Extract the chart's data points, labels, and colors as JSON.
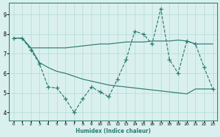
{
  "x": [
    0,
    1,
    2,
    3,
    4,
    5,
    6,
    7,
    8,
    9,
    10,
    11,
    12,
    13,
    14,
    15,
    16,
    17,
    18,
    19,
    20,
    21,
    22,
    23
  ],
  "line_flat": [
    7.8,
    7.8,
    7.3,
    7.3,
    7.3,
    7.3,
    7.3,
    7.35,
    7.4,
    7.45,
    7.5,
    7.5,
    7.55,
    7.6,
    7.6,
    7.6,
    7.65,
    7.65,
    7.65,
    7.7,
    7.65,
    7.5,
    7.5,
    7.5
  ],
  "line_diag": [
    7.8,
    7.8,
    7.3,
    6.55,
    6.3,
    6.1,
    6.0,
    5.85,
    5.7,
    5.6,
    5.5,
    5.4,
    5.35,
    5.3,
    5.25,
    5.2,
    5.15,
    5.1,
    5.05,
    5.0,
    4.95,
    5.2,
    5.2,
    5.2
  ],
  "line_jagged": [
    7.8,
    7.8,
    7.2,
    6.5,
    5.3,
    5.25,
    4.7,
    4.0,
    4.7,
    5.3,
    5.05,
    4.8,
    5.7,
    6.7,
    8.15,
    8.0,
    7.5,
    9.3,
    6.7,
    6.0,
    7.65,
    7.5,
    6.3,
    5.2
  ],
  "color": "#2a7a72",
  "bg_color": "#daf0ee",
  "grid_color": "#b0d8d4",
  "xlabel": "Humidex (Indice chaleur)",
  "ylim": [
    3.6,
    9.6
  ],
  "xlim": [
    -0.5,
    23.5
  ],
  "yticks": [
    4,
    5,
    6,
    7,
    8,
    9
  ],
  "xticks": [
    0,
    1,
    2,
    3,
    4,
    5,
    6,
    7,
    8,
    9,
    10,
    11,
    12,
    13,
    14,
    15,
    16,
    17,
    18,
    19,
    20,
    21,
    22,
    23
  ]
}
